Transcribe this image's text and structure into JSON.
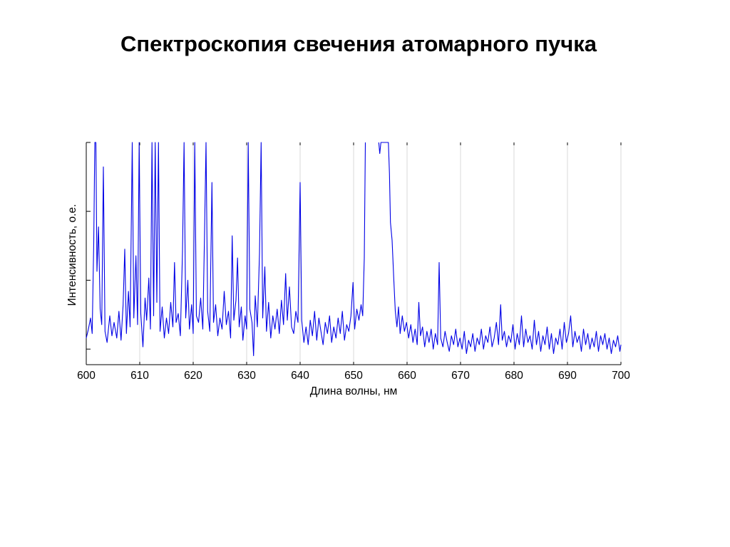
{
  "slide": {
    "title": "Спектроскопия свечения атомарного пучка"
  },
  "chart_data": {
    "type": "line",
    "title": "",
    "xlabel": "Длина волны, нм",
    "ylabel": "Интенсивность, о.е.",
    "xlim": [
      600,
      700
    ],
    "ylim": [
      0,
      1
    ],
    "x_ticks": [
      600,
      610,
      620,
      630,
      640,
      650,
      660,
      670,
      680,
      690,
      700
    ],
    "y_ticks": [
      0.07,
      0.38,
      0.69,
      1.0
    ],
    "y_tick_labels_shown": false,
    "grid": "x",
    "series": [
      {
        "name": "",
        "color": "#0000e6",
        "points": [
          [
            600.0,
            0.12
          ],
          [
            600.4,
            0.16
          ],
          [
            600.8,
            0.21
          ],
          [
            601.1,
            0.14
          ],
          [
            601.4,
            0.55
          ],
          [
            601.6,
            1.0
          ],
          [
            601.8,
            1.0
          ],
          [
            602.0,
            0.42
          ],
          [
            602.3,
            0.62
          ],
          [
            602.6,
            0.25
          ],
          [
            602.9,
            0.18
          ],
          [
            603.2,
            0.89
          ],
          [
            603.5,
            0.15
          ],
          [
            603.9,
            0.1
          ],
          [
            604.4,
            0.22
          ],
          [
            604.8,
            0.13
          ],
          [
            605.2,
            0.19
          ],
          [
            605.7,
            0.12
          ],
          [
            606.1,
            0.24
          ],
          [
            606.5,
            0.11
          ],
          [
            606.9,
            0.27
          ],
          [
            607.2,
            0.52
          ],
          [
            607.5,
            0.14
          ],
          [
            607.9,
            0.33
          ],
          [
            608.2,
            0.17
          ],
          [
            608.6,
            1.0
          ],
          [
            608.9,
            0.21
          ],
          [
            609.3,
            0.49
          ],
          [
            609.6,
            0.18
          ],
          [
            609.9,
            1.0
          ],
          [
            610.2,
            0.23
          ],
          [
            610.6,
            0.08
          ],
          [
            611.0,
            0.3
          ],
          [
            611.3,
            0.2
          ],
          [
            611.7,
            0.39
          ],
          [
            612.0,
            0.16
          ],
          [
            612.3,
            1.0
          ],
          [
            612.6,
            0.22
          ],
          [
            612.9,
            1.0
          ],
          [
            613.2,
            0.28
          ],
          [
            613.5,
            1.0
          ],
          [
            613.8,
            0.15
          ],
          [
            614.2,
            0.26
          ],
          [
            614.6,
            0.12
          ],
          [
            615.0,
            0.21
          ],
          [
            615.4,
            0.14
          ],
          [
            615.8,
            0.28
          ],
          [
            616.2,
            0.17
          ],
          [
            616.5,
            0.46
          ],
          [
            616.8,
            0.19
          ],
          [
            617.2,
            0.23
          ],
          [
            617.6,
            0.13
          ],
          [
            618.0,
            0.51
          ],
          [
            618.3,
            1.0
          ],
          [
            618.6,
            0.21
          ],
          [
            619.0,
            0.38
          ],
          [
            619.3,
            0.16
          ],
          [
            619.7,
            0.27
          ],
          [
            620.0,
            0.14
          ],
          [
            620.3,
            1.0
          ],
          [
            620.6,
            0.22
          ],
          [
            621.0,
            0.19
          ],
          [
            621.4,
            0.3
          ],
          [
            621.8,
            0.16
          ],
          [
            622.1,
            0.57
          ],
          [
            622.4,
            1.0
          ],
          [
            622.7,
            0.24
          ],
          [
            623.1,
            0.15
          ],
          [
            623.5,
            0.82
          ],
          [
            623.8,
            0.19
          ],
          [
            624.2,
            0.27
          ],
          [
            624.6,
            0.13
          ],
          [
            625.0,
            0.21
          ],
          [
            625.4,
            0.16
          ],
          [
            625.8,
            0.33
          ],
          [
            626.2,
            0.18
          ],
          [
            626.6,
            0.24
          ],
          [
            627.0,
            0.12
          ],
          [
            627.3,
            0.58
          ],
          [
            627.6,
            0.2
          ],
          [
            628.0,
            0.29
          ],
          [
            628.3,
            0.48
          ],
          [
            628.6,
            0.17
          ],
          [
            629.0,
            0.26
          ],
          [
            629.3,
            0.11
          ],
          [
            629.7,
            0.22
          ],
          [
            630.0,
            0.16
          ],
          [
            630.3,
            1.0
          ],
          [
            630.6,
            0.25
          ],
          [
            631.0,
            0.19
          ],
          [
            631.3,
            0.04
          ],
          [
            631.6,
            0.31
          ],
          [
            632.0,
            0.17
          ],
          [
            632.4,
            0.5
          ],
          [
            632.7,
            1.0
          ],
          [
            633.0,
            0.21
          ],
          [
            633.4,
            0.44
          ],
          [
            633.7,
            0.15
          ],
          [
            634.1,
            0.28
          ],
          [
            634.5,
            0.12
          ],
          [
            634.9,
            0.22
          ],
          [
            635.3,
            0.16
          ],
          [
            635.7,
            0.25
          ],
          [
            636.1,
            0.14
          ],
          [
            636.5,
            0.29
          ],
          [
            636.9,
            0.18
          ],
          [
            637.3,
            0.41
          ],
          [
            637.6,
            0.2
          ],
          [
            638.0,
            0.35
          ],
          [
            638.4,
            0.17
          ],
          [
            638.8,
            0.14
          ],
          [
            639.2,
            0.24
          ],
          [
            639.6,
            0.19
          ],
          [
            640.0,
            0.82
          ],
          [
            640.3,
            0.2
          ],
          [
            640.7,
            0.1
          ],
          [
            641.1,
            0.17
          ],
          [
            641.5,
            0.09
          ],
          [
            641.9,
            0.2
          ],
          [
            642.3,
            0.13
          ],
          [
            642.7,
            0.24
          ],
          [
            643.1,
            0.11
          ],
          [
            643.5,
            0.21
          ],
          [
            643.9,
            0.15
          ],
          [
            644.3,
            0.09
          ],
          [
            644.7,
            0.19
          ],
          [
            645.1,
            0.14
          ],
          [
            645.5,
            0.22
          ],
          [
            645.9,
            0.1
          ],
          [
            646.3,
            0.17
          ],
          [
            646.7,
            0.12
          ],
          [
            647.1,
            0.21
          ],
          [
            647.5,
            0.14
          ],
          [
            647.9,
            0.24
          ],
          [
            648.3,
            0.11
          ],
          [
            648.7,
            0.18
          ],
          [
            649.1,
            0.15
          ],
          [
            649.5,
            0.22
          ],
          [
            649.9,
            0.37
          ],
          [
            650.2,
            0.16
          ],
          [
            650.6,
            0.25
          ],
          [
            651.0,
            0.2
          ],
          [
            651.4,
            0.27
          ],
          [
            651.7,
            0.22
          ],
          [
            652.0,
            0.48
          ],
          [
            652.2,
            1.0
          ],
          [
            654.7,
            1.0
          ],
          [
            654.9,
            0.95
          ],
          [
            655.1,
            1.0
          ],
          [
            656.5,
            1.0
          ],
          [
            656.7,
            0.86
          ],
          [
            656.9,
            0.64
          ],
          [
            657.2,
            0.56
          ],
          [
            657.5,
            0.39
          ],
          [
            657.8,
            0.24
          ],
          [
            658.1,
            0.17
          ],
          [
            658.4,
            0.26
          ],
          [
            658.7,
            0.14
          ],
          [
            659.1,
            0.22
          ],
          [
            659.5,
            0.15
          ],
          [
            659.9,
            0.19
          ],
          [
            660.3,
            0.12
          ],
          [
            660.7,
            0.18
          ],
          [
            661.1,
            0.1
          ],
          [
            661.5,
            0.16
          ],
          [
            661.9,
            0.09
          ],
          [
            662.2,
            0.28
          ],
          [
            662.5,
            0.13
          ],
          [
            662.9,
            0.17
          ],
          [
            663.3,
            0.08
          ],
          [
            663.7,
            0.15
          ],
          [
            664.1,
            0.1
          ],
          [
            664.5,
            0.16
          ],
          [
            664.9,
            0.07
          ],
          [
            665.3,
            0.14
          ],
          [
            665.7,
            0.09
          ],
          [
            666.0,
            0.46
          ],
          [
            666.3,
            0.12
          ],
          [
            666.7,
            0.08
          ],
          [
            667.1,
            0.15
          ],
          [
            667.5,
            0.1
          ],
          [
            667.9,
            0.06
          ],
          [
            668.3,
            0.13
          ],
          [
            668.7,
            0.09
          ],
          [
            669.1,
            0.16
          ],
          [
            669.5,
            0.08
          ],
          [
            669.9,
            0.12
          ],
          [
            670.3,
            0.07
          ],
          [
            670.7,
            0.15
          ],
          [
            671.1,
            0.05
          ],
          [
            671.5,
            0.11
          ],
          [
            671.9,
            0.08
          ],
          [
            672.3,
            0.14
          ],
          [
            672.7,
            0.06
          ],
          [
            673.1,
            0.12
          ],
          [
            673.5,
            0.09
          ],
          [
            673.9,
            0.16
          ],
          [
            674.3,
            0.07
          ],
          [
            674.7,
            0.13
          ],
          [
            675.1,
            0.1
          ],
          [
            675.5,
            0.17
          ],
          [
            675.9,
            0.08
          ],
          [
            676.3,
            0.12
          ],
          [
            676.7,
            0.19
          ],
          [
            677.1,
            0.09
          ],
          [
            677.5,
            0.27
          ],
          [
            677.8,
            0.11
          ],
          [
            678.2,
            0.15
          ],
          [
            678.6,
            0.08
          ],
          [
            679.0,
            0.13
          ],
          [
            679.4,
            0.1
          ],
          [
            679.8,
            0.18
          ],
          [
            680.2,
            0.07
          ],
          [
            680.6,
            0.14
          ],
          [
            681.0,
            0.09
          ],
          [
            681.4,
            0.22
          ],
          [
            681.8,
            0.08
          ],
          [
            682.2,
            0.16
          ],
          [
            682.6,
            0.1
          ],
          [
            683.0,
            0.13
          ],
          [
            683.4,
            0.07
          ],
          [
            683.8,
            0.2
          ],
          [
            684.2,
            0.09
          ],
          [
            684.6,
            0.15
          ],
          [
            685.0,
            0.06
          ],
          [
            685.4,
            0.13
          ],
          [
            685.8,
            0.09
          ],
          [
            686.2,
            0.17
          ],
          [
            686.6,
            0.07
          ],
          [
            687.0,
            0.14
          ],
          [
            687.4,
            0.05
          ],
          [
            687.8,
            0.12
          ],
          [
            688.2,
            0.09
          ],
          [
            688.6,
            0.16
          ],
          [
            689.0,
            0.07
          ],
          [
            689.4,
            0.19
          ],
          [
            689.8,
            0.1
          ],
          [
            690.2,
            0.14
          ],
          [
            690.6,
            0.22
          ],
          [
            691.0,
            0.08
          ],
          [
            691.4,
            0.15
          ],
          [
            691.8,
            0.1
          ],
          [
            692.2,
            0.13
          ],
          [
            692.6,
            0.06
          ],
          [
            693.0,
            0.16
          ],
          [
            693.4,
            0.09
          ],
          [
            693.8,
            0.14
          ],
          [
            694.2,
            0.07
          ],
          [
            694.6,
            0.12
          ],
          [
            695.0,
            0.08
          ],
          [
            695.4,
            0.15
          ],
          [
            695.8,
            0.06
          ],
          [
            696.2,
            0.13
          ],
          [
            696.6,
            0.09
          ],
          [
            697.0,
            0.14
          ],
          [
            697.4,
            0.07
          ],
          [
            697.8,
            0.12
          ],
          [
            698.2,
            0.05
          ],
          [
            698.6,
            0.11
          ],
          [
            699.0,
            0.08
          ],
          [
            699.4,
            0.13
          ],
          [
            699.8,
            0.06
          ],
          [
            700.0,
            0.09
          ]
        ]
      }
    ]
  }
}
